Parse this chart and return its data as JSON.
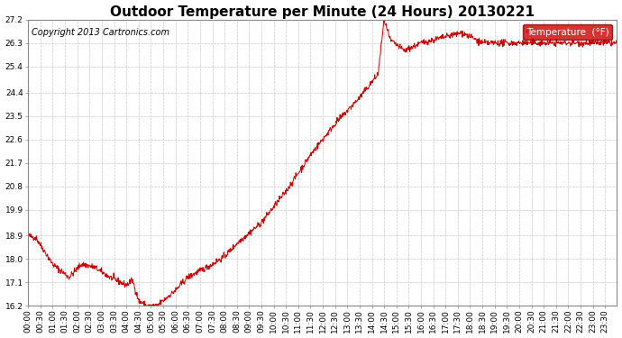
{
  "title": "Outdoor Temperature per Minute (24 Hours) 20130221",
  "copyright_text": "Copyright 2013 Cartronics.com",
  "legend_label": "Temperature  (°F)",
  "line_color": "#cc0000",
  "background_color": "#ffffff",
  "grid_color": "#bbbbbb",
  "legend_bg": "#cc0000",
  "legend_fg": "#ffffff",
  "ylim": [
    16.2,
    27.2
  ],
  "yticks": [
    16.2,
    17.1,
    18.0,
    18.9,
    19.9,
    20.8,
    21.7,
    22.6,
    23.5,
    24.4,
    25.4,
    26.3,
    27.2
  ],
  "num_minutes": 1440,
  "title_fontsize": 11,
  "tick_fontsize": 6.5,
  "copyright_fontsize": 7,
  "axis_bg": "#ffffff",
  "tick_interval_minutes": 30
}
